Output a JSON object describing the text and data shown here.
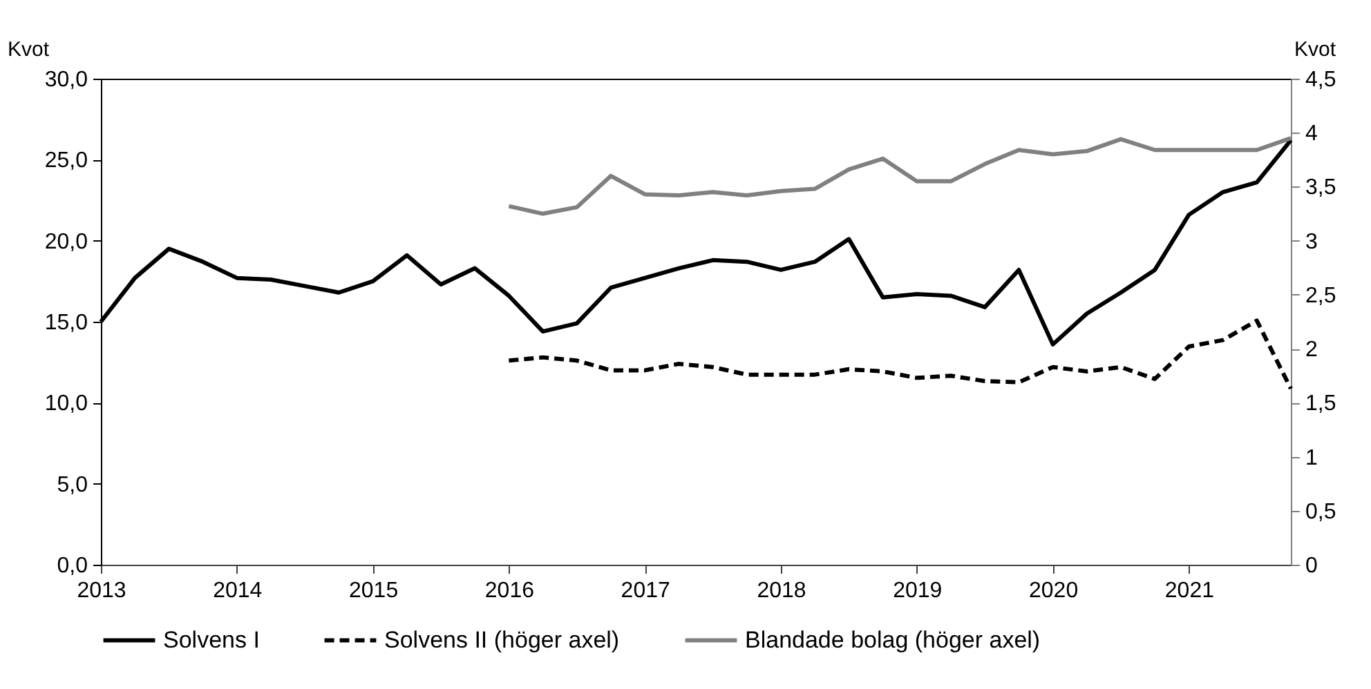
{
  "chart_data": {
    "type": "line",
    "ylabel": "Kvot",
    "y2label": "Kvot",
    "xlim": [
      2013,
      2021.75
    ],
    "xticks": [
      2013,
      2014,
      2015,
      2016,
      2017,
      2018,
      2019,
      2020,
      2021
    ],
    "ylim": [
      0,
      30
    ],
    "yticks": [
      {
        "value": 0,
        "label": "0,0"
      },
      {
        "value": 5,
        "label": "5,0"
      },
      {
        "value": 10,
        "label": "10,0"
      },
      {
        "value": 15,
        "label": "15,0"
      },
      {
        "value": 20,
        "label": "20,0"
      },
      {
        "value": 25,
        "label": "25,0"
      },
      {
        "value": 30,
        "label": "30,0"
      }
    ],
    "y2lim": [
      0,
      4.5
    ],
    "y2ticks": [
      0,
      {
        "value": 0.5,
        "label": "0,5"
      },
      1,
      {
        "value": 1.5,
        "label": "1,5"
      },
      2,
      {
        "value": 2.5,
        "label": "2,5"
      },
      3,
      {
        "value": 3.5,
        "label": "3,5"
      },
      4,
      {
        "value": 4.5,
        "label": "4,5"
      }
    ],
    "grid": false,
    "legend": "bottom",
    "marker": "none",
    "series": [
      {
        "name": "Solvens I",
        "color": "#000000",
        "line_style": "solid",
        "x": [
          2013,
          2013.25,
          2013.5,
          2013.75,
          2014,
          2014.25,
          2014.5,
          2014.75,
          2015,
          2015.25,
          2015.5,
          2015.75,
          2016,
          2016.25,
          2016.5,
          2016.75,
          2017,
          2017.25,
          2017.5,
          2017.75,
          2018,
          2018.25,
          2018.5,
          2018.75,
          2019,
          2019.25,
          2019.5,
          2019.75,
          2020,
          2020.25,
          2020.5,
          2020.75,
          2021,
          2021.25,
          2021.5,
          2021.75
        ],
        "values": [
          15.0,
          17.7,
          19.5,
          18.7,
          17.7,
          17.6,
          17.2,
          16.8,
          17.5,
          19.1,
          17.3,
          18.3,
          16.6,
          14.4,
          14.9,
          17.1,
          17.7,
          18.3,
          18.8,
          18.7,
          18.2,
          18.7,
          20.1,
          16.5,
          16.7,
          16.6,
          15.9,
          18.2,
          13.6,
          15.5,
          16.8,
          18.2,
          21.6,
          23.0,
          23.6,
          26.2
        ]
      },
      {
        "name": "Solvens II (höger axel)",
        "color": "#000000",
        "line_style": "dashed",
        "axis": "y2",
        "x": [
          2016,
          2016.25,
          2016.5,
          2016.75,
          2017,
          2017.25,
          2017.5,
          2017.75,
          2018,
          2018.25,
          2018.5,
          2018.75,
          2019,
          2019.25,
          2019.5,
          2019.75,
          2020,
          2020.25,
          2020.5,
          2020.75,
          2021,
          2021.25,
          2021.5,
          2021.75
        ],
        "values": [
          1.89,
          1.92,
          1.89,
          1.8,
          1.8,
          1.86,
          1.83,
          1.76,
          1.76,
          1.76,
          1.81,
          1.79,
          1.73,
          1.75,
          1.7,
          1.69,
          1.83,
          1.79,
          1.83,
          1.72,
          2.02,
          2.08,
          2.26,
          1.63
        ]
      },
      {
        "name": "Blandade bolag (höger axel)",
        "color": "#808080",
        "line_style": "solid",
        "axis": "y2",
        "x": [
          2016,
          2016.25,
          2016.5,
          2016.75,
          2017,
          2017.25,
          2017.5,
          2017.75,
          2018,
          2018.25,
          2018.5,
          2018.75,
          2019,
          2019.25,
          2019.5,
          2019.75,
          2020,
          2020.25,
          2020.5,
          2020.75,
          2021,
          2021.25,
          2021.5,
          2021.75
        ],
        "values": [
          3.32,
          3.25,
          3.31,
          3.6,
          3.43,
          3.42,
          3.45,
          3.42,
          3.46,
          3.48,
          3.66,
          3.76,
          3.55,
          3.55,
          3.71,
          3.84,
          3.8,
          3.83,
          3.94,
          3.84,
          3.84,
          3.84,
          3.84,
          3.95
        ]
      }
    ]
  }
}
